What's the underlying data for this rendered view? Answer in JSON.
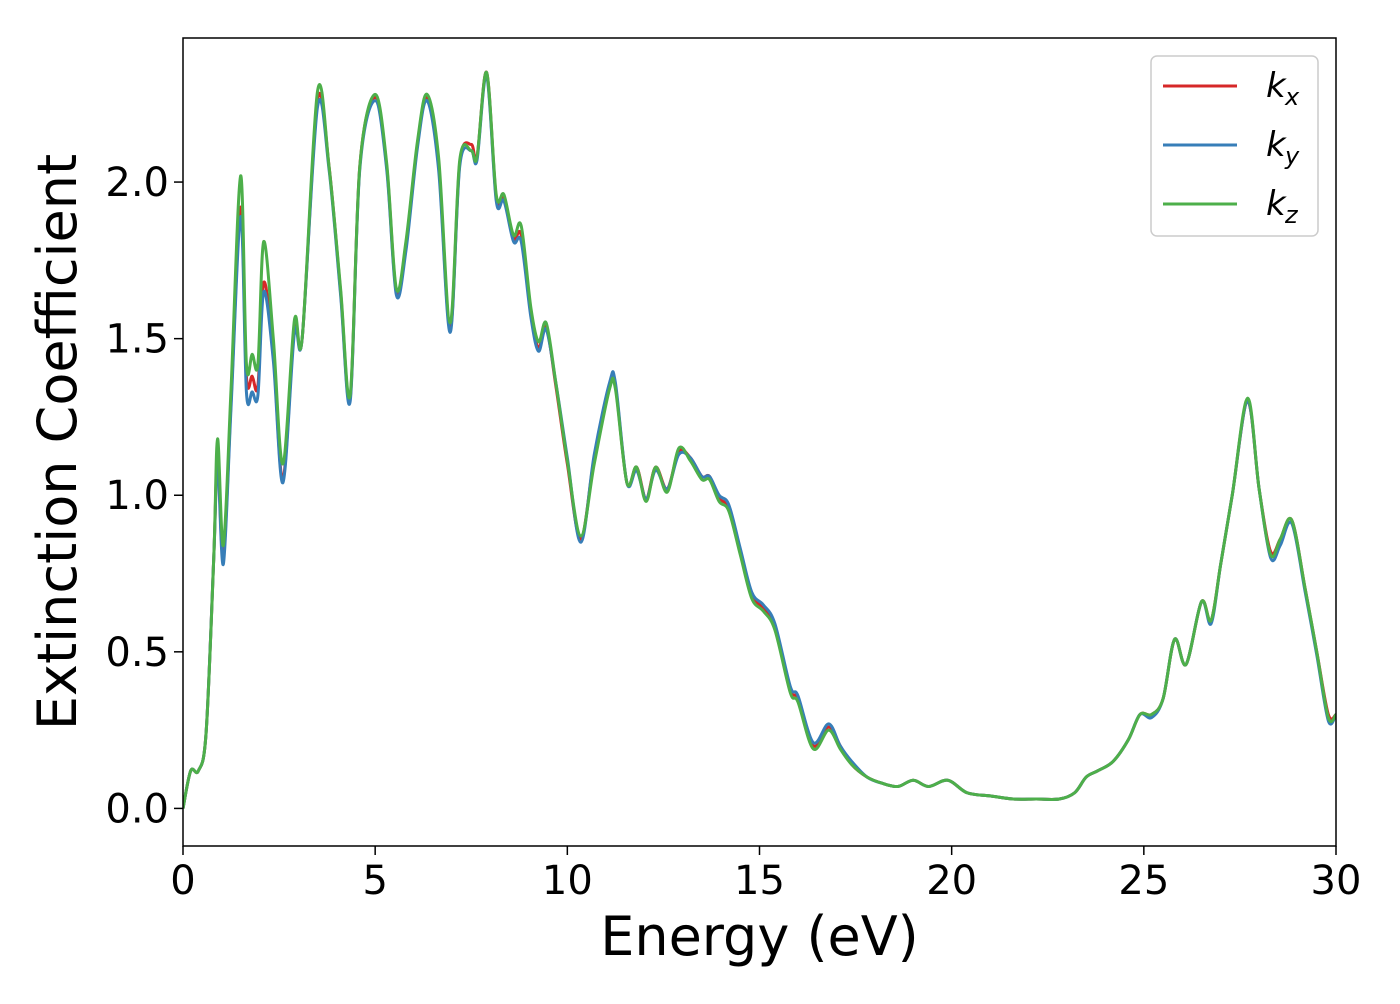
{
  "chart_data": {
    "type": "line",
    "xlabel": "Energy (eV)",
    "ylabel": "Extinction Coefficient",
    "xlim": [
      0,
      30
    ],
    "ylim": [
      -0.12,
      2.46
    ],
    "xticks": [
      0,
      5,
      10,
      15,
      20,
      25,
      30
    ],
    "xtick_labels": [
      "0",
      "5",
      "10",
      "15",
      "20",
      "25",
      "30"
    ],
    "yticks": [
      0.0,
      0.5,
      1.0,
      1.5,
      2.0
    ],
    "ytick_labels": [
      "0.0",
      "0.5",
      "1.0",
      "1.5",
      "2.0"
    ],
    "grid": false,
    "legend_position": "top-right",
    "x": [
      0,
      0.2,
      0.4,
      0.6,
      0.8,
      0.9,
      1.05,
      1.25,
      1.5,
      1.65,
      1.8,
      1.95,
      2.1,
      2.35,
      2.6,
      2.9,
      3.1,
      3.5,
      3.8,
      4.1,
      4.35,
      4.6,
      5.0,
      5.3,
      5.55,
      5.8,
      6.1,
      6.35,
      6.65,
      6.95,
      7.2,
      7.5,
      7.65,
      7.9,
      8.15,
      8.35,
      8.6,
      8.8,
      9.05,
      9.25,
      9.45,
      9.7,
      10.0,
      10.35,
      10.7,
      11.1,
      11.25,
      11.55,
      11.8,
      12.05,
      12.3,
      12.6,
      12.9,
      13.2,
      13.5,
      13.7,
      13.95,
      14.2,
      14.5,
      14.8,
      15.1,
      15.4,
      15.8,
      16.0,
      16.4,
      16.8,
      17.1,
      17.4,
      17.8,
      18.2,
      18.6,
      19.0,
      19.4,
      19.9,
      20.4,
      21.0,
      21.6,
      22.2,
      22.8,
      23.2,
      23.5,
      23.8,
      24.2,
      24.6,
      24.9,
      25.2,
      25.5,
      25.8,
      26.1,
      26.5,
      26.75,
      27.0,
      27.3,
      27.7,
      28.0,
      28.3,
      28.55,
      28.85,
      29.2,
      29.5,
      29.8,
      30.0
    ],
    "series": [
      {
        "name": "k",
        "name_subscript": "x",
        "color": "#d62728",
        "y": [
          0.0,
          0.12,
          0.12,
          0.24,
          0.8,
          1.12,
          0.8,
          1.3,
          1.92,
          1.38,
          1.38,
          1.35,
          1.68,
          1.45,
          1.05,
          1.54,
          1.5,
          2.26,
          2.05,
          1.65,
          1.31,
          2.05,
          2.27,
          2.05,
          1.65,
          1.8,
          2.12,
          2.27,
          2.06,
          1.53,
          2.06,
          2.12,
          2.08,
          2.35,
          1.95,
          1.95,
          1.82,
          1.83,
          1.58,
          1.47,
          1.54,
          1.35,
          1.1,
          0.86,
          1.12,
          1.35,
          1.35,
          1.04,
          1.09,
          0.99,
          1.09,
          1.02,
          1.14,
          1.12,
          1.06,
          1.06,
          0.99,
          0.96,
          0.82,
          0.68,
          0.64,
          0.58,
          0.38,
          0.35,
          0.2,
          0.26,
          0.2,
          0.14,
          0.1,
          0.08,
          0.07,
          0.09,
          0.07,
          0.09,
          0.05,
          0.04,
          0.03,
          0.03,
          0.03,
          0.05,
          0.1,
          0.12,
          0.15,
          0.22,
          0.3,
          0.3,
          0.35,
          0.54,
          0.46,
          0.66,
          0.6,
          0.78,
          1.0,
          1.3,
          1.02,
          0.82,
          0.86,
          0.92,
          0.7,
          0.5,
          0.3,
          0.3
        ]
      },
      {
        "name": "k",
        "name_subscript": "y",
        "color": "#377eb8",
        "y": [
          0.0,
          0.12,
          0.12,
          0.24,
          0.8,
          1.1,
          0.78,
          1.28,
          1.89,
          1.33,
          1.33,
          1.32,
          1.65,
          1.43,
          1.04,
          1.52,
          1.5,
          2.24,
          2.04,
          1.64,
          1.3,
          2.04,
          2.26,
          2.04,
          1.64,
          1.78,
          2.11,
          2.26,
          2.04,
          1.52,
          2.05,
          2.1,
          2.07,
          2.34,
          1.94,
          1.94,
          1.81,
          1.81,
          1.57,
          1.46,
          1.53,
          1.36,
          1.12,
          0.85,
          1.13,
          1.36,
          1.36,
          1.04,
          1.08,
          0.99,
          1.08,
          1.02,
          1.13,
          1.12,
          1.06,
          1.06,
          1.0,
          0.97,
          0.83,
          0.69,
          0.65,
          0.59,
          0.39,
          0.36,
          0.21,
          0.27,
          0.2,
          0.15,
          0.1,
          0.08,
          0.07,
          0.09,
          0.07,
          0.09,
          0.05,
          0.04,
          0.03,
          0.03,
          0.03,
          0.05,
          0.1,
          0.12,
          0.15,
          0.22,
          0.3,
          0.29,
          0.35,
          0.54,
          0.46,
          0.66,
          0.59,
          0.78,
          1.0,
          1.3,
          1.02,
          0.8,
          0.84,
          0.91,
          0.69,
          0.49,
          0.28,
          0.3
        ]
      },
      {
        "name": "k",
        "name_subscript": "z",
        "color": "#4daf4a",
        "y": [
          0.0,
          0.12,
          0.12,
          0.24,
          0.8,
          1.18,
          0.84,
          1.34,
          2.02,
          1.42,
          1.45,
          1.42,
          1.81,
          1.5,
          1.1,
          1.56,
          1.5,
          2.29,
          2.05,
          1.66,
          1.32,
          2.05,
          2.28,
          2.06,
          1.66,
          1.81,
          2.13,
          2.28,
          2.08,
          1.55,
          2.07,
          2.1,
          2.08,
          2.35,
          1.96,
          1.96,
          1.83,
          1.86,
          1.6,
          1.49,
          1.55,
          1.36,
          1.11,
          0.87,
          1.1,
          1.34,
          1.34,
          1.04,
          1.09,
          0.98,
          1.09,
          1.01,
          1.15,
          1.11,
          1.05,
          1.05,
          0.98,
          0.95,
          0.81,
          0.67,
          0.63,
          0.57,
          0.37,
          0.34,
          0.19,
          0.25,
          0.19,
          0.14,
          0.1,
          0.08,
          0.07,
          0.09,
          0.07,
          0.09,
          0.05,
          0.04,
          0.03,
          0.03,
          0.03,
          0.05,
          0.1,
          0.12,
          0.15,
          0.22,
          0.3,
          0.3,
          0.35,
          0.54,
          0.46,
          0.66,
          0.6,
          0.78,
          1.0,
          1.31,
          1.02,
          0.81,
          0.86,
          0.92,
          0.7,
          0.5,
          0.29,
          0.3
        ]
      }
    ]
  }
}
